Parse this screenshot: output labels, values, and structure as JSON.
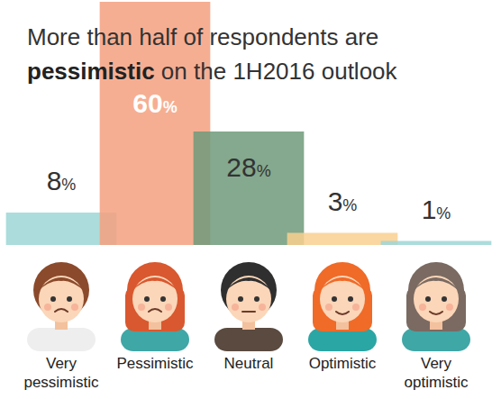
{
  "chart_data": {
    "type": "bar",
    "title": "More than half of respondents are pessimistic on the 1H2016 outlook",
    "categories": [
      "Very pessimistic",
      "Pessimistic",
      "Neutral",
      "Optimistic",
      "Very optimistic"
    ],
    "values": [
      8,
      60,
      28,
      3,
      1
    ],
    "value_labels": [
      "8%",
      "60%",
      "28%",
      "3%",
      "1%"
    ],
    "colors": [
      "#9ed6d6",
      "#f5a07f",
      "#6e9a7a",
      "#f9d08f",
      "#9ed6d6"
    ],
    "ylim": [
      0,
      60
    ],
    "data_labels": true,
    "tick_labels": false
  }
}
